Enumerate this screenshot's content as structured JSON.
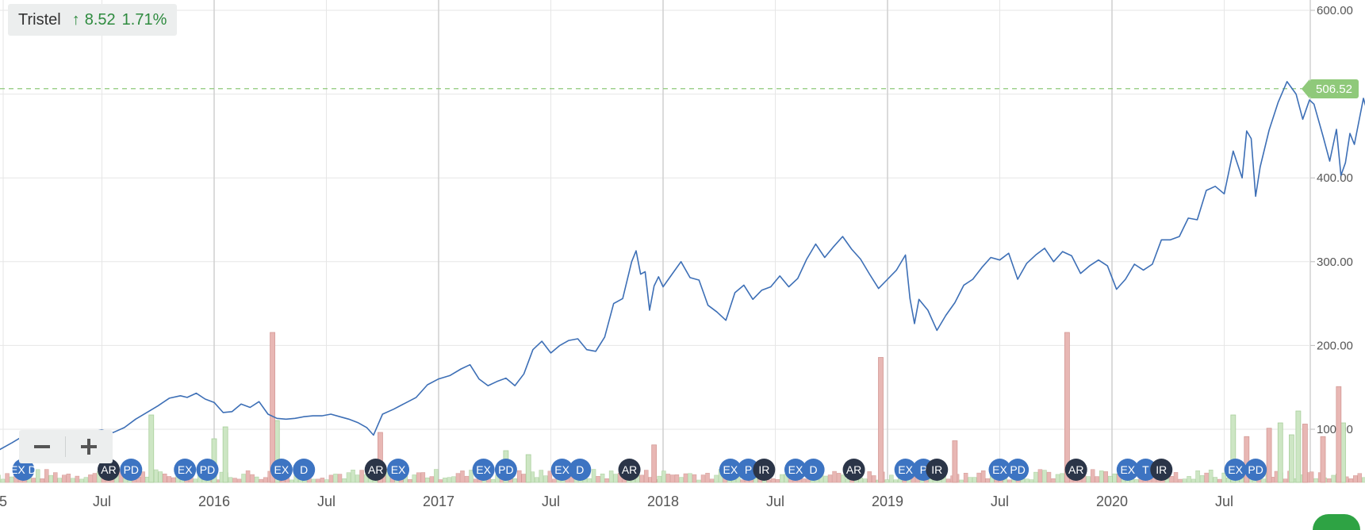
{
  "legend": {
    "name": "Tristel",
    "change": "8.52",
    "pct": "1.71%",
    "arrow": "↑"
  },
  "price_tag": "506.52",
  "zoom": {
    "minus_icon": "minus-icon",
    "plus_icon": "plus-icon"
  },
  "colors": {
    "line": "#3d6fb6",
    "grid": "#e6e6e6",
    "up_volume": "#cde6c4",
    "down_volume": "#e8b7b4",
    "event_blue": "#3d74c2",
    "event_dark": "#2b3548",
    "price_tag": "#8fc97a",
    "price_dash": "#8fc97a",
    "change_text": "#2e8b3f"
  },
  "chart_data": {
    "type": "line",
    "y_ticks": [
      "600.00",
      "500.00",
      "400.00",
      "300.00",
      "200.00",
      "100.00"
    ],
    "x_ticks": [
      "5",
      "Jul",
      "2016",
      "Jul",
      "2017",
      "Jul",
      "2018",
      "Jul",
      "2019",
      "Jul",
      "2020",
      "Jul"
    ],
    "ylim": [
      45,
      600
    ],
    "grid": true,
    "current_value": 506.52,
    "series": [
      {
        "name": "Tristel",
        "values": [
          [
            2015.0,
            79
          ],
          [
            2015.04,
            75
          ],
          [
            2015.1,
            84
          ],
          [
            2015.15,
            92
          ],
          [
            2015.2,
            98
          ],
          [
            2015.25,
            94
          ],
          [
            2015.3,
            97
          ],
          [
            2015.35,
            98
          ],
          [
            2015.4,
            94
          ],
          [
            2015.45,
            97
          ],
          [
            2015.5,
            99
          ],
          [
            2015.55,
            96
          ],
          [
            2015.6,
            102
          ],
          [
            2015.65,
            112
          ],
          [
            2015.7,
            120
          ],
          [
            2015.75,
            128
          ],
          [
            2015.8,
            137
          ],
          [
            2015.85,
            140
          ],
          [
            2015.88,
            138
          ],
          [
            2015.92,
            143
          ],
          [
            2015.96,
            136
          ],
          [
            2016.0,
            132
          ],
          [
            2016.04,
            120
          ],
          [
            2016.08,
            121
          ],
          [
            2016.12,
            130
          ],
          [
            2016.16,
            126
          ],
          [
            2016.2,
            133
          ],
          [
            2016.24,
            118
          ],
          [
            2016.28,
            113
          ],
          [
            2016.32,
            112
          ],
          [
            2016.36,
            113
          ],
          [
            2016.4,
            115
          ],
          [
            2016.44,
            116
          ],
          [
            2016.48,
            116
          ],
          [
            2016.52,
            118
          ],
          [
            2016.56,
            115
          ],
          [
            2016.6,
            112
          ],
          [
            2016.64,
            108
          ],
          [
            2016.68,
            102
          ],
          [
            2016.71,
            93
          ],
          [
            2016.75,
            118
          ],
          [
            2016.8,
            124
          ],
          [
            2016.85,
            131
          ],
          [
            2016.9,
            138
          ],
          [
            2016.95,
            153
          ],
          [
            2017.0,
            160
          ],
          [
            2017.05,
            164
          ],
          [
            2017.1,
            172
          ],
          [
            2017.14,
            177
          ],
          [
            2017.18,
            160
          ],
          [
            2017.22,
            152
          ],
          [
            2017.26,
            157
          ],
          [
            2017.3,
            161
          ],
          [
            2017.34,
            152
          ],
          [
            2017.38,
            166
          ],
          [
            2017.42,
            195
          ],
          [
            2017.46,
            205
          ],
          [
            2017.5,
            191
          ],
          [
            2017.54,
            200
          ],
          [
            2017.58,
            206
          ],
          [
            2017.62,
            208
          ],
          [
            2017.66,
            195
          ],
          [
            2017.7,
            193
          ],
          [
            2017.74,
            210
          ],
          [
            2017.78,
            250
          ],
          [
            2017.82,
            256
          ],
          [
            2017.86,
            300
          ],
          [
            2017.88,
            313
          ],
          [
            2017.9,
            285
          ],
          [
            2017.92,
            288
          ],
          [
            2017.94,
            242
          ],
          [
            2017.96,
            271
          ],
          [
            2017.98,
            282
          ],
          [
            2018.0,
            270
          ],
          [
            2018.04,
            285
          ],
          [
            2018.08,
            300
          ],
          [
            2018.12,
            281
          ],
          [
            2018.16,
            278
          ],
          [
            2018.2,
            248
          ],
          [
            2018.24,
            240
          ],
          [
            2018.28,
            230
          ],
          [
            2018.32,
            263
          ],
          [
            2018.36,
            272
          ],
          [
            2018.4,
            255
          ],
          [
            2018.44,
            266
          ],
          [
            2018.48,
            270
          ],
          [
            2018.52,
            283
          ],
          [
            2018.56,
            270
          ],
          [
            2018.6,
            280
          ],
          [
            2018.64,
            303
          ],
          [
            2018.68,
            321
          ],
          [
            2018.72,
            305
          ],
          [
            2018.76,
            318
          ],
          [
            2018.8,
            330
          ],
          [
            2018.84,
            315
          ],
          [
            2018.88,
            303
          ],
          [
            2018.92,
            285
          ],
          [
            2018.96,
            268
          ],
          [
            2019.0,
            279
          ],
          [
            2019.04,
            290
          ],
          [
            2019.08,
            308
          ],
          [
            2019.1,
            256
          ],
          [
            2019.12,
            226
          ],
          [
            2019.14,
            255
          ],
          [
            2019.18,
            242
          ],
          [
            2019.22,
            218
          ],
          [
            2019.26,
            236
          ],
          [
            2019.3,
            251
          ],
          [
            2019.34,
            272
          ],
          [
            2019.38,
            279
          ],
          [
            2019.42,
            293
          ],
          [
            2019.46,
            305
          ],
          [
            2019.5,
            302
          ],
          [
            2019.54,
            310
          ],
          [
            2019.58,
            279
          ],
          [
            2019.62,
            298
          ],
          [
            2019.66,
            308
          ],
          [
            2019.7,
            316
          ],
          [
            2019.74,
            300
          ],
          [
            2019.78,
            312
          ],
          [
            2019.82,
            307
          ],
          [
            2019.86,
            286
          ],
          [
            2019.9,
            295
          ],
          [
            2019.94,
            302
          ],
          [
            2019.98,
            295
          ],
          [
            2020.02,
            267
          ],
          [
            2020.06,
            279
          ],
          [
            2020.1,
            297
          ],
          [
            2020.14,
            290
          ],
          [
            2020.18,
            297
          ],
          [
            2020.22,
            326
          ],
          [
            2020.26,
            326
          ],
          [
            2020.3,
            330
          ],
          [
            2020.34,
            352
          ],
          [
            2020.38,
            350
          ],
          [
            2020.42,
            385
          ],
          [
            2020.46,
            390
          ],
          [
            2020.5,
            381
          ],
          [
            2020.54,
            432
          ],
          [
            2020.58,
            400
          ],
          [
            2020.6,
            456
          ],
          [
            2020.62,
            447
          ],
          [
            2020.64,
            378
          ],
          [
            2020.66,
            413
          ],
          [
            2020.7,
            457
          ],
          [
            2020.74,
            490
          ],
          [
            2020.78,
            515
          ],
          [
            2020.82,
            500
          ],
          [
            2020.85,
            470
          ],
          [
            2020.88,
            493
          ],
          [
            2020.9,
            488
          ],
          [
            2020.94,
            450
          ],
          [
            2020.97,
            420
          ],
          [
            2021.0,
            458
          ],
          [
            2021.02,
            403
          ],
          [
            2021.04,
            418
          ],
          [
            2021.06,
            453
          ],
          [
            2021.08,
            440
          ],
          [
            2021.12,
            495
          ],
          [
            2021.16,
            458
          ],
          [
            2021.2,
            420
          ],
          [
            2021.24,
            445
          ],
          [
            2021.28,
            480
          ],
          [
            2021.32,
            495
          ],
          [
            2021.36,
            506.52
          ]
        ]
      }
    ]
  },
  "events": [
    {
      "label": "EX D",
      "kind": "blue"
    },
    {
      "label": "AR",
      "kind": "dark"
    },
    {
      "label": "PD",
      "kind": "blue"
    },
    {
      "label": "EX",
      "kind": "blue"
    },
    {
      "label": "PD",
      "kind": "blue"
    },
    {
      "label": "EX",
      "kind": "blue"
    },
    {
      "label": "D",
      "kind": "blue"
    },
    {
      "label": "AR",
      "kind": "dark"
    },
    {
      "label": "EX",
      "kind": "blue"
    },
    {
      "label": "EX",
      "kind": "blue"
    },
    {
      "label": "PD",
      "kind": "blue"
    },
    {
      "label": "EX",
      "kind": "blue"
    },
    {
      "label": "D",
      "kind": "blue"
    },
    {
      "label": "AR",
      "kind": "dark"
    },
    {
      "label": "EX",
      "kind": "blue"
    },
    {
      "label": "P",
      "kind": "blue"
    },
    {
      "label": "IR",
      "kind": "dark"
    },
    {
      "label": "EX",
      "kind": "blue"
    },
    {
      "label": "D",
      "kind": "blue"
    },
    {
      "label": "AR",
      "kind": "dark"
    },
    {
      "label": "EX",
      "kind": "blue"
    },
    {
      "label": "P",
      "kind": "blue"
    },
    {
      "label": "IR",
      "kind": "dark"
    },
    {
      "label": "EX",
      "kind": "blue"
    },
    {
      "label": "PD",
      "kind": "blue"
    },
    {
      "label": "AR",
      "kind": "dark"
    },
    {
      "label": "EX",
      "kind": "blue"
    },
    {
      "label": "T",
      "kind": "blue"
    },
    {
      "label": "IR",
      "kind": "dark"
    },
    {
      "label": "EX",
      "kind": "blue"
    },
    {
      "label": "PD",
      "kind": "blue"
    }
  ],
  "event_positions": [
    2015.15,
    2015.53,
    2015.63,
    2015.87,
    2015.97,
    2016.3,
    2016.4,
    2016.72,
    2016.82,
    2017.2,
    2017.3,
    2017.55,
    2017.63,
    2017.85,
    2018.3,
    2018.38,
    2018.45,
    2018.59,
    2018.67,
    2018.85,
    2019.08,
    2019.16,
    2019.22,
    2019.5,
    2019.58,
    2019.84,
    2020.07,
    2020.15,
    2020.22,
    2020.55,
    2020.64
  ],
  "volume": {
    "up_big": [
      [
        2015.72,
        85
      ],
      [
        2016.0,
        55
      ],
      [
        2016.05,
        70
      ],
      [
        2016.28,
        78
      ],
      [
        2017.3,
        40
      ],
      [
        2017.4,
        35
      ],
      [
        2020.54,
        85
      ],
      [
        2020.75,
        75
      ],
      [
        2020.8,
        60
      ],
      [
        2020.83,
        90
      ],
      [
        2021.03,
        75
      ],
      [
        2021.2,
        40
      ],
      [
        2021.26,
        35
      ],
      [
        2021.3,
        55
      ]
    ],
    "down_big": [
      [
        2016.26,
        180
      ],
      [
        2018.97,
        150
      ],
      [
        2019.8,
        180
      ],
      [
        2021.01,
        115
      ],
      [
        2016.74,
        60
      ],
      [
        2017.96,
        45
      ],
      [
        2019.3,
        50
      ],
      [
        2020.6,
        55
      ],
      [
        2020.7,
        65
      ],
      [
        2020.86,
        70
      ],
      [
        2020.94,
        55
      ]
    ]
  }
}
